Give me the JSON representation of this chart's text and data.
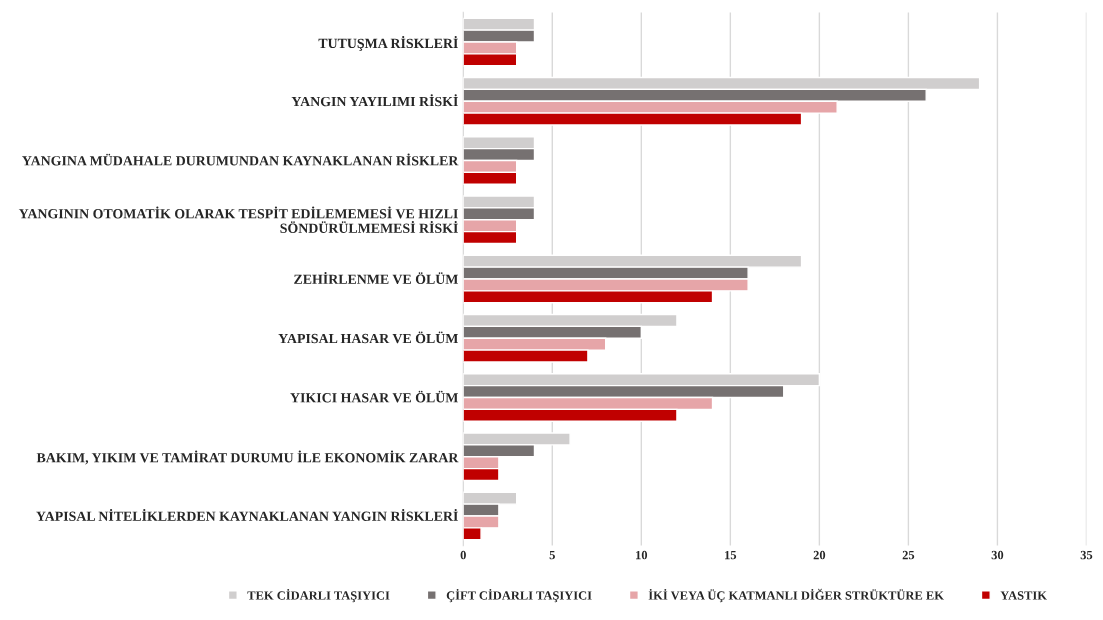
{
  "chart_data": {
    "type": "bar",
    "orientation": "horizontal",
    "categories": [
      "TUTUŞMA RİSKLERİ",
      "YANGIN YAYILIMI RİSKİ",
      "YANGINA MÜDAHALE DURUMUNDAN KAYNAKLANAN RİSKLER",
      "YANGININ OTOMATİK OLARAK TESPİT EDİLEMEMESİ VE HIZLI\nSÖNDÜRÜLMEMESİ RİSKİ",
      "ZEHİRLENME VE ÖLÜM",
      "YAPISAL HASAR VE ÖLÜM",
      "YIKICI HASAR VE ÖLÜM",
      "BAKIM, YIKIM VE TAMİRAT DURUMU İLE EKONOMİK ZARAR",
      "YAPISAL NİTELİKLERDEN KAYNAKLANAN YANGIN RİSKLERİ"
    ],
    "series": [
      {
        "name": "TEK CİDARLI TAŞIYICI",
        "color": "#d0cece",
        "values": [
          4,
          29,
          4,
          4,
          19,
          12,
          20,
          6,
          3
        ]
      },
      {
        "name": "ÇİFT CİDARLI TAŞIYICI",
        "color": "#767171",
        "values": [
          4,
          26,
          4,
          4,
          16,
          10,
          18,
          4,
          2
        ]
      },
      {
        "name": "İKİ VEYA ÜÇ KATMANLI DİĞER STRÜKTÜRE EK",
        "color": "#e6a5a8",
        "values": [
          3,
          21,
          3,
          3,
          16,
          8,
          14,
          2,
          2
        ]
      },
      {
        "name": "YASTIK",
        "color": "#c00000",
        "values": [
          3,
          19,
          3,
          3,
          14,
          7,
          12,
          2,
          1
        ]
      }
    ],
    "xlim": [
      0,
      35
    ],
    "xticks": [
      0,
      5,
      10,
      15,
      20,
      25,
      30,
      35
    ],
    "grid": "x",
    "legend": "bottom"
  }
}
